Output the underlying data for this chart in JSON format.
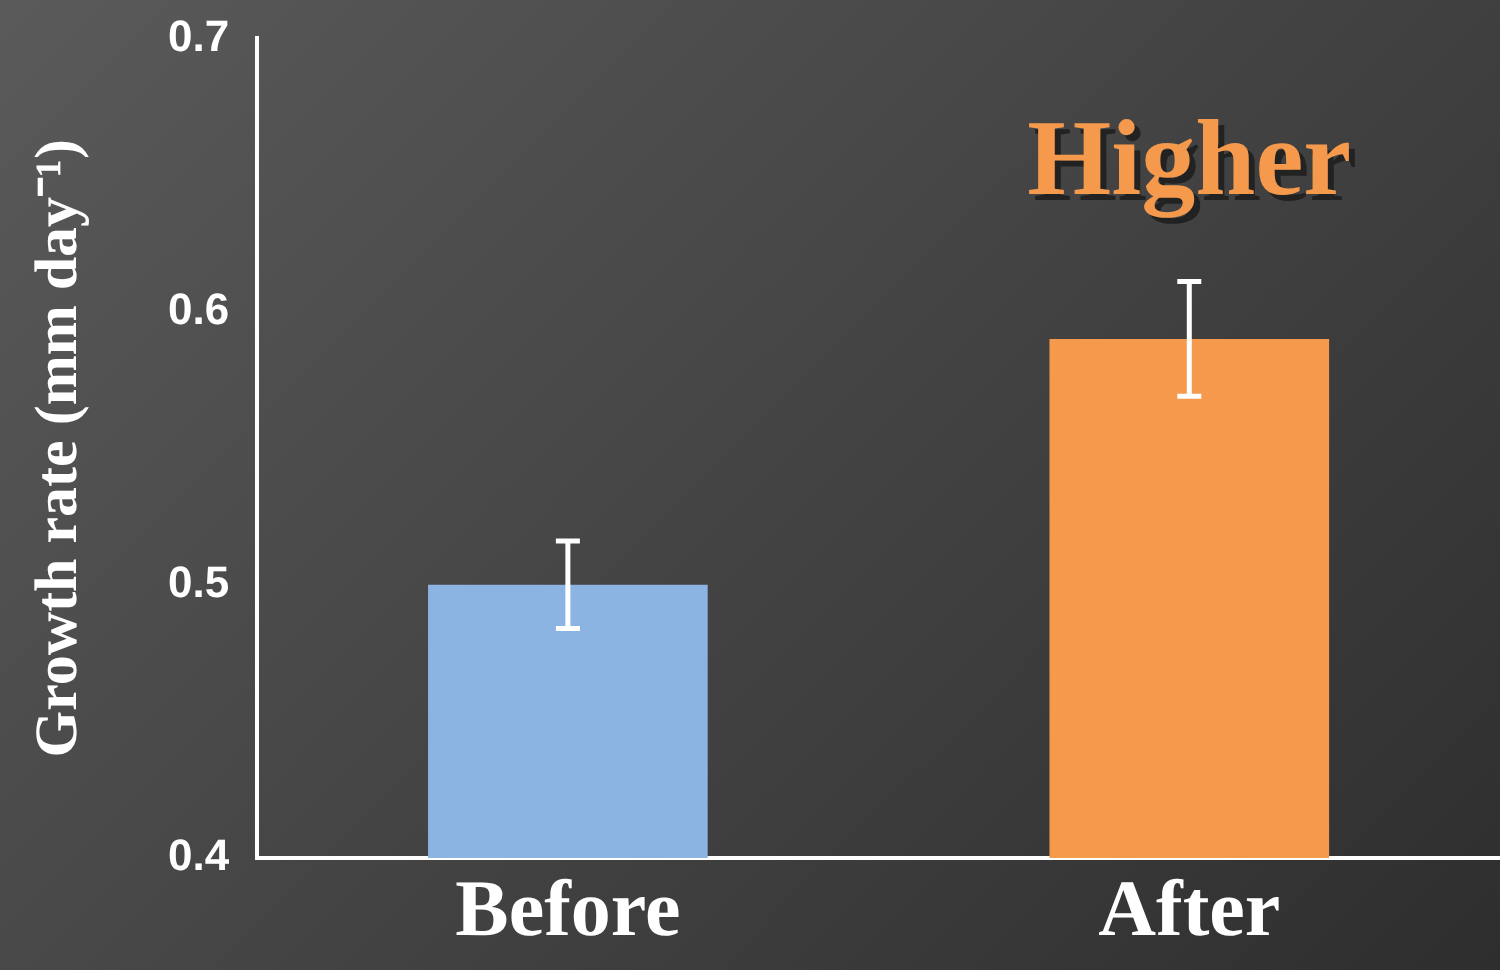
{
  "chart_data": {
    "type": "bar",
    "ylabel": "Growth rate (mm day⁻¹)",
    "categories": [
      "Before",
      "After"
    ],
    "values": [
      0.5,
      0.59
    ],
    "errors": [
      0.016,
      0.021
    ],
    "colors": [
      "#8cb4e2",
      "#f59a4c"
    ],
    "ylim": [
      0.4,
      0.7
    ],
    "yticks": [
      0.4,
      0.5,
      0.6,
      0.7
    ],
    "grid": false,
    "legend": false,
    "annotations": [
      "Higher"
    ]
  }
}
